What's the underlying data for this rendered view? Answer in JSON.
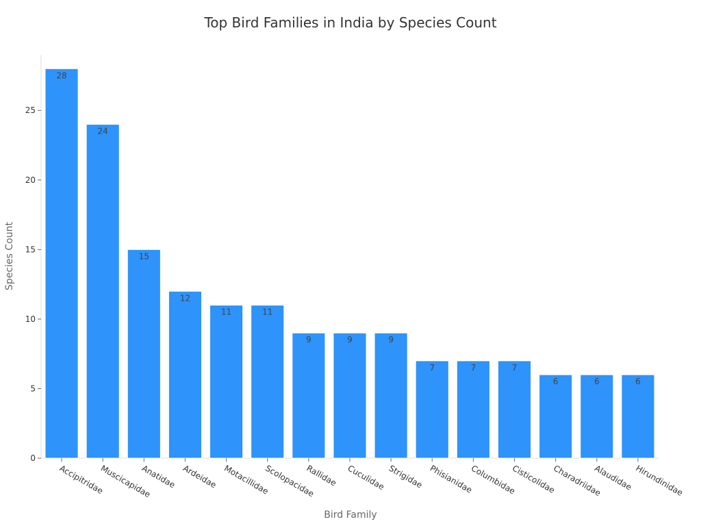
{
  "chart_data": {
    "type": "bar",
    "title": "Top Bird Families in India by Species Count",
    "xlabel": "Bird Family",
    "ylabel": "Species Count",
    "categories": [
      "Accipitridae",
      "Muscicapidae",
      "Anatidae",
      "Ardeidae",
      "Motacillidae",
      "Scolopacidae",
      "Rallidae",
      "Cuculidae",
      "Strigidae",
      "Phisianidae",
      "Columbidae",
      "Cisticolidae",
      "Charadriidae",
      "Alaudidae",
      "Hirundinidae"
    ],
    "values": [
      28,
      24,
      15,
      12,
      11,
      11,
      9,
      9,
      9,
      7,
      7,
      7,
      6,
      6,
      6
    ],
    "ylim": [
      0,
      29
    ],
    "yticks": [
      0,
      5,
      10,
      15,
      20,
      25
    ],
    "bar_color": "#2e93fa",
    "data_labels": true,
    "grid": false,
    "legend": "none"
  }
}
